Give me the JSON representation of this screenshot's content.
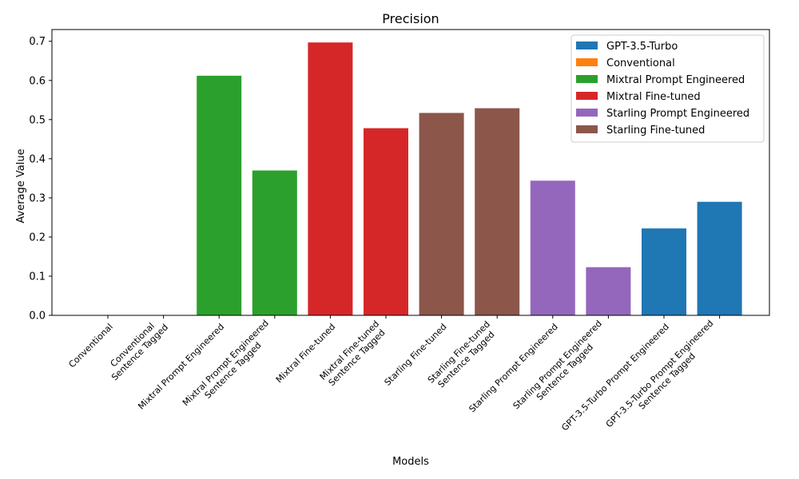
{
  "chart_data": {
    "type": "bar",
    "title": "Precision",
    "xlabel": "Models",
    "ylabel": "Average Value",
    "ylim": [
      0,
      0.73
    ],
    "yticks": [
      "0.0",
      "0.1",
      "0.2",
      "0.3",
      "0.4",
      "0.5",
      "0.6",
      "0.7"
    ],
    "grid": false,
    "legend_position": "top-right",
    "categories": [
      "Conventional",
      "Conventional\nSentence Tagged",
      "Mixtral Prompt Engineered",
      "Mixtral Prompt Engineered\nSentence Tagged",
      "Mixtral Fine-tuned",
      "Mixtral Fine-tuned\nSentence Tagged",
      "Starling Fine-tuned",
      "Starling Fine-tuned\nSentence Tagged",
      "Starling Prompt Engineered",
      "Starling Prompt Engineered\nSentence Tagged",
      "GPT-3.5-Turbo Prompt Engineered",
      "GPT-3.5-Turbo Prompt Engineered\nSentence Tagged"
    ],
    "values": [
      0.0,
      0.0,
      0.612,
      0.37,
      0.697,
      0.478,
      0.517,
      0.529,
      0.344,
      0.123,
      0.222,
      0.29
    ],
    "bar_groups": [
      "Conventional",
      "Conventional",
      "Mixtral Prompt Engineered",
      "Mixtral Prompt Engineered",
      "Mixtral Fine-tuned",
      "Mixtral Fine-tuned",
      "Starling Fine-tuned",
      "Starling Fine-tuned",
      "Starling Prompt Engineered",
      "Starling Prompt Engineered",
      "GPT-3.5-Turbo",
      "GPT-3.5-Turbo"
    ],
    "legend": [
      {
        "name": "GPT-3.5-Turbo",
        "color": "#1f77b4"
      },
      {
        "name": "Conventional",
        "color": "#ff7f0e"
      },
      {
        "name": "Mixtral Prompt Engineered",
        "color": "#2ca02c"
      },
      {
        "name": "Mixtral Fine-tuned",
        "color": "#d62728"
      },
      {
        "name": "Starling Prompt Engineered",
        "color": "#9467bd"
      },
      {
        "name": "Starling Fine-tuned",
        "color": "#8c564b"
      }
    ]
  }
}
